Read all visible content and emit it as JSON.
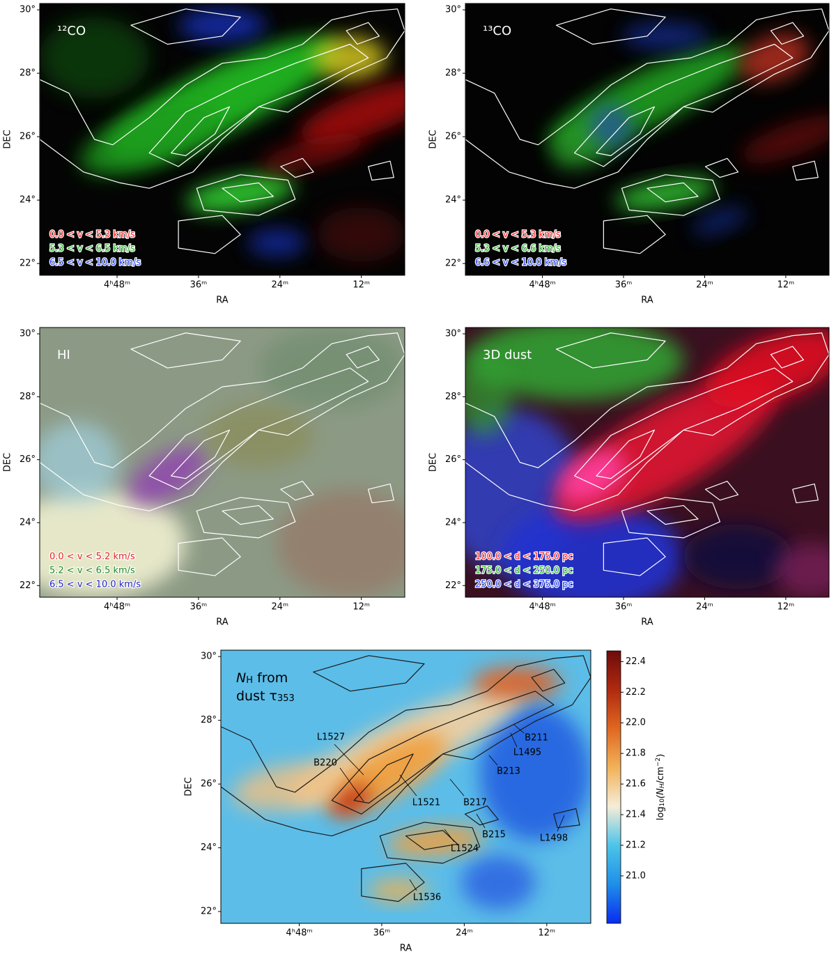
{
  "chart_data": [
    {
      "type": "image",
      "annotation": "¹²CO",
      "annotation_color": "#ffffff",
      "contour_color": "#ffffff",
      "legend": [
        {
          "label": "0.0 < v < 5.3 km/s",
          "color": "#ff2020"
        },
        {
          "label": "5.3 < v < 6.5 km/s",
          "color": "#22b022"
        },
        {
          "label": "6.5 < v < 10.0 km/s",
          "color": "#2040ff"
        }
      ],
      "xlabel": "RA",
      "ylabel": "DEC",
      "xlim": [
        59.4,
        5.6
      ],
      "ylim": [
        21.63,
        30.2
      ],
      "xticks": [
        {
          "value": 48,
          "label": "4ʰ48ᵐ"
        },
        {
          "value": 36,
          "label": "36ᵐ"
        },
        {
          "value": 24,
          "label": "24ᵐ"
        },
        {
          "value": 12,
          "label": "12ᵐ"
        }
      ],
      "yticks": [
        {
          "value": 30,
          "label": "30°"
        },
        {
          "value": 28,
          "label": "28°"
        },
        {
          "value": 26,
          "label": "26°"
        },
        {
          "value": 24,
          "label": "24°"
        },
        {
          "value": 22,
          "label": "22°"
        }
      ]
    },
    {
      "type": "image",
      "annotation": "¹³CO",
      "annotation_color": "#ffffff",
      "contour_color": "#ffffff",
      "legend": [
        {
          "label": "0.0 < v < 5.3 km/s",
          "color": "#ff2020"
        },
        {
          "label": "5.3 < v < 6.6 km/s",
          "color": "#22b022"
        },
        {
          "label": "6.6 < v < 10.0 km/s",
          "color": "#2040ff"
        }
      ],
      "xlabel": "RA",
      "ylabel": "DEC",
      "xlim": [
        59.4,
        5.6
      ],
      "ylim": [
        21.63,
        30.2
      ],
      "xticks": [
        {
          "value": 48,
          "label": "4ʰ48ᵐ"
        },
        {
          "value": 36,
          "label": "36ᵐ"
        },
        {
          "value": 24,
          "label": "24ᵐ"
        },
        {
          "value": 12,
          "label": "12ᵐ"
        }
      ],
      "yticks": [
        {
          "value": 30,
          "label": "30°"
        },
        {
          "value": 28,
          "label": "28°"
        },
        {
          "value": 26,
          "label": "26°"
        },
        {
          "value": 24,
          "label": "24°"
        },
        {
          "value": 22,
          "label": "22°"
        }
      ]
    },
    {
      "type": "image",
      "annotation": "HI",
      "annotation_color": "#ffffff",
      "contour_color": "#ffffff",
      "legend": [
        {
          "label": "0.0 < v < 5.2 km/s",
          "color": "#e02020"
        },
        {
          "label": "5.2 < v < 6.5 km/s",
          "color": "#1e8a1e"
        },
        {
          "label": "6.5 < v < 10.0 km/s",
          "color": "#2020c0"
        }
      ],
      "xlabel": "RA",
      "ylabel": "DEC",
      "xlim": [
        59.4,
        5.6
      ],
      "ylim": [
        21.63,
        30.2
      ],
      "xticks": [
        {
          "value": 48,
          "label": "4ʰ48ᵐ"
        },
        {
          "value": 36,
          "label": "36ᵐ"
        },
        {
          "value": 24,
          "label": "24ᵐ"
        },
        {
          "value": 12,
          "label": "12ᵐ"
        }
      ],
      "yticks": [
        {
          "value": 30,
          "label": "30°"
        },
        {
          "value": 28,
          "label": "28°"
        },
        {
          "value": 26,
          "label": "26°"
        },
        {
          "value": 24,
          "label": "24°"
        },
        {
          "value": 22,
          "label": "22°"
        }
      ]
    },
    {
      "type": "image",
      "annotation": "3D dust",
      "annotation_color": "#ffffff",
      "contour_color": "#ffffff",
      "legend": [
        {
          "label": "100.0 < d < 175.0 pc",
          "color": "#ff2020"
        },
        {
          "label": "175.0 < d < 250.0 pc",
          "color": "#22b022"
        },
        {
          "label": "250.0 < d < 375.0 pc",
          "color": "#2040ff"
        }
      ],
      "xlabel": "RA",
      "ylabel": "DEC",
      "xlim": [
        59.4,
        5.6
      ],
      "ylim": [
        21.63,
        30.2
      ],
      "xticks": [
        {
          "value": 48,
          "label": "4ʰ48ᵐ"
        },
        {
          "value": 36,
          "label": "36ᵐ"
        },
        {
          "value": 24,
          "label": "24ᵐ"
        },
        {
          "value": 12,
          "label": "12ᵐ"
        }
      ],
      "yticks": [
        {
          "value": 30,
          "label": "30°"
        },
        {
          "value": 28,
          "label": "28°"
        },
        {
          "value": 26,
          "label": "26°"
        },
        {
          "value": 24,
          "label": "24°"
        },
        {
          "value": 22,
          "label": "22°"
        }
      ]
    },
    {
      "type": "heatmap",
      "annotation_parts": [
        "N",
        "H",
        " from",
        "dust τ",
        "353"
      ],
      "annotation_color": "#000000",
      "contour_color": "#1a1a1a",
      "objects": [
        "L1527",
        "B220",
        "L1521",
        "B217",
        "B215",
        "L1524",
        "L1536",
        "B211",
        "L1495",
        "B213",
        "L1498"
      ],
      "xlabel": "RA",
      "ylabel": "DEC",
      "xlim": [
        59.4,
        5.6
      ],
      "ylim": [
        21.63,
        30.2
      ],
      "xticks": [
        {
          "value": 48,
          "label": "4ʰ48ᵐ"
        },
        {
          "value": 36,
          "label": "36ᵐ"
        },
        {
          "value": 24,
          "label": "24ᵐ"
        },
        {
          "value": 12,
          "label": "12ᵐ"
        }
      ],
      "yticks": [
        {
          "value": 30,
          "label": "30°"
        },
        {
          "value": 28,
          "label": "28°"
        },
        {
          "value": 26,
          "label": "26°"
        },
        {
          "value": 24,
          "label": "24°"
        },
        {
          "value": 22,
          "label": "22°"
        }
      ],
      "colorbar": {
        "label_parts": [
          "log",
          "10",
          "(N",
          "H",
          "/cm",
          "−2",
          ")"
        ],
        "clim": [
          20.69,
          22.47
        ],
        "colormap": [
          "#0a2cf0",
          "#1f8fe8",
          "#4cc4e8",
          "#f5edd8",
          "#f2b25a",
          "#e06820",
          "#b02a10",
          "#6e0b0b"
        ],
        "ticks": [
          {
            "value": 21.0,
            "label": "21.0"
          },
          21.2,
          21.4,
          21.6,
          21.8,
          {
            "value": 22.0,
            "label": "22.0"
          },
          22.2,
          22.4
        ]
      }
    }
  ]
}
